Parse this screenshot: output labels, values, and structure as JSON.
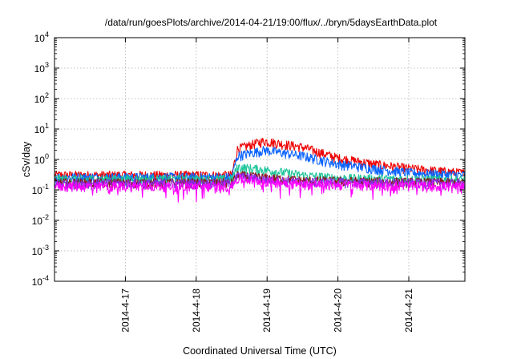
{
  "chart_data": {
    "type": "line",
    "title": "/data/run/goesPlots/archive/2014-04-21/19:00/flux/../bryn/5daysEarthData.plot",
    "xlabel": "Coordinated Universal Time (UTC)",
    "ylabel": "cSv/day",
    "yscale": "log",
    "ylim": [
      0.0001,
      10000
    ],
    "yticks": [
      {
        "base": "10",
        "exp": "4"
      },
      {
        "base": "10",
        "exp": "3"
      },
      {
        "base": "10",
        "exp": "2"
      },
      {
        "base": "10",
        "exp": "1"
      },
      {
        "base": "10",
        "exp": "0"
      },
      {
        "base": "10",
        "exp": "-1"
      },
      {
        "base": "10",
        "exp": "-2"
      },
      {
        "base": "10",
        "exp": "-3"
      },
      {
        "base": "10",
        "exp": "-4"
      }
    ],
    "xlim": [
      "2014-04-16 00:00",
      "2014-04-21 19:00"
    ],
    "xticks": [
      "2014-4-17",
      "2014-4-18",
      "2014-4-19",
      "2014-4-20",
      "2014-4-21"
    ],
    "grid": true,
    "legend": "none",
    "series": [
      {
        "color": "#ee0000",
        "points": [
          [
            "2014-04-16 00:00",
            0.3
          ],
          [
            "2014-04-18 12:00",
            0.3
          ],
          [
            "2014-04-18 14:00",
            2.2
          ],
          [
            "2014-04-18 23:00",
            4.0
          ],
          [
            "2014-04-19 12:00",
            2.5
          ],
          [
            "2014-04-20 00:00",
            1.1
          ],
          [
            "2014-04-20 12:00",
            0.7
          ],
          [
            "2014-04-21 00:00",
            0.5
          ],
          [
            "2014-04-21 19:00",
            0.35
          ]
        ]
      },
      {
        "color": "#0a64ff",
        "points": [
          [
            "2014-04-16 00:00",
            0.26
          ],
          [
            "2014-04-18 12:00",
            0.26
          ],
          [
            "2014-04-18 14:00",
            1.3
          ],
          [
            "2014-04-18 23:00",
            2.0
          ],
          [
            "2014-04-19 12:00",
            1.3
          ],
          [
            "2014-04-20 00:00",
            0.7
          ],
          [
            "2014-04-20 12:00",
            0.5
          ],
          [
            "2014-04-21 00:00",
            0.36
          ],
          [
            "2014-04-21 19:00",
            0.3
          ]
        ]
      },
      {
        "color": "#1cc49a",
        "points": [
          [
            "2014-04-16 00:00",
            0.22
          ],
          [
            "2014-04-18 12:00",
            0.22
          ],
          [
            "2014-04-18 14:00",
            0.55
          ],
          [
            "2014-04-18 23:00",
            0.45
          ],
          [
            "2014-04-19 12:00",
            0.3
          ],
          [
            "2014-04-20 00:00",
            0.24
          ],
          [
            "2014-04-21 19:00",
            0.21
          ]
        ]
      },
      {
        "color": "#8b1a1a",
        "points": [
          [
            "2014-04-16 00:00",
            0.17
          ],
          [
            "2014-04-18 12:00",
            0.17
          ],
          [
            "2014-04-18 14:00",
            0.3
          ],
          [
            "2014-04-18 23:00",
            0.25
          ],
          [
            "2014-04-19 12:00",
            0.2
          ],
          [
            "2014-04-21 19:00",
            0.17
          ]
        ]
      },
      {
        "color": "#8a2be2",
        "points": [
          [
            "2014-04-16 00:00",
            0.16
          ],
          [
            "2014-04-18 12:00",
            0.16
          ],
          [
            "2014-04-18 14:00",
            0.28
          ],
          [
            "2014-04-18 23:00",
            0.22
          ],
          [
            "2014-04-19 12:00",
            0.18
          ],
          [
            "2014-04-21 19:00",
            0.16
          ]
        ]
      },
      {
        "color": "#ff00ff",
        "points": [
          [
            "2014-04-16 00:00",
            0.13
          ],
          [
            "2014-04-18 12:00",
            0.13
          ],
          [
            "2014-04-18 14:00",
            0.23
          ],
          [
            "2014-04-18 23:00",
            0.19
          ],
          [
            "2014-04-19 12:00",
            0.15
          ],
          [
            "2014-04-21 19:00",
            0.13
          ]
        ]
      }
    ]
  }
}
